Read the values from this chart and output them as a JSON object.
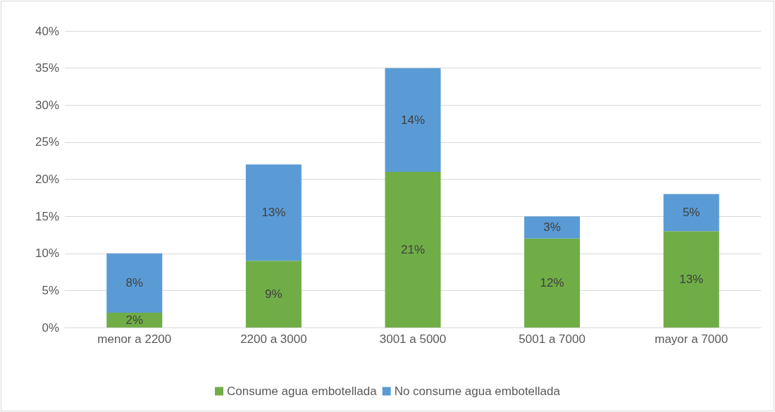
{
  "chart_data": {
    "type": "bar",
    "stacked": true,
    "categories": [
      "menor a 2200",
      "2200 a 3000",
      "3001 a 5000",
      "5001 a 7000",
      "mayor a 7000"
    ],
    "series": [
      {
        "name": "Consume agua embotellada",
        "color": "#70ad47",
        "values": [
          2,
          9,
          21,
          12,
          13
        ],
        "value_labels": [
          "2%",
          "9%",
          "21%",
          "12%",
          "13%"
        ]
      },
      {
        "name": "No consume agua embotellada",
        "color": "#5b9bd5",
        "values": [
          8,
          13,
          14,
          3,
          5
        ],
        "value_labels": [
          "8%",
          "13%",
          "14%",
          "3%",
          "5%"
        ]
      }
    ],
    "ylim": [
      0,
      40
    ],
    "yticks": [
      {
        "value": 0,
        "label": "0%"
      },
      {
        "value": 5,
        "label": "5%"
      },
      {
        "value": 10,
        "label": "10%"
      },
      {
        "value": 15,
        "label": "15%"
      },
      {
        "value": 20,
        "label": "20%"
      },
      {
        "value": 25,
        "label": "25%"
      },
      {
        "value": 30,
        "label": "30%"
      },
      {
        "value": 35,
        "label": "35%"
      },
      {
        "value": 40,
        "label": "40%"
      }
    ],
    "grid": "y",
    "legend": "bottom"
  }
}
